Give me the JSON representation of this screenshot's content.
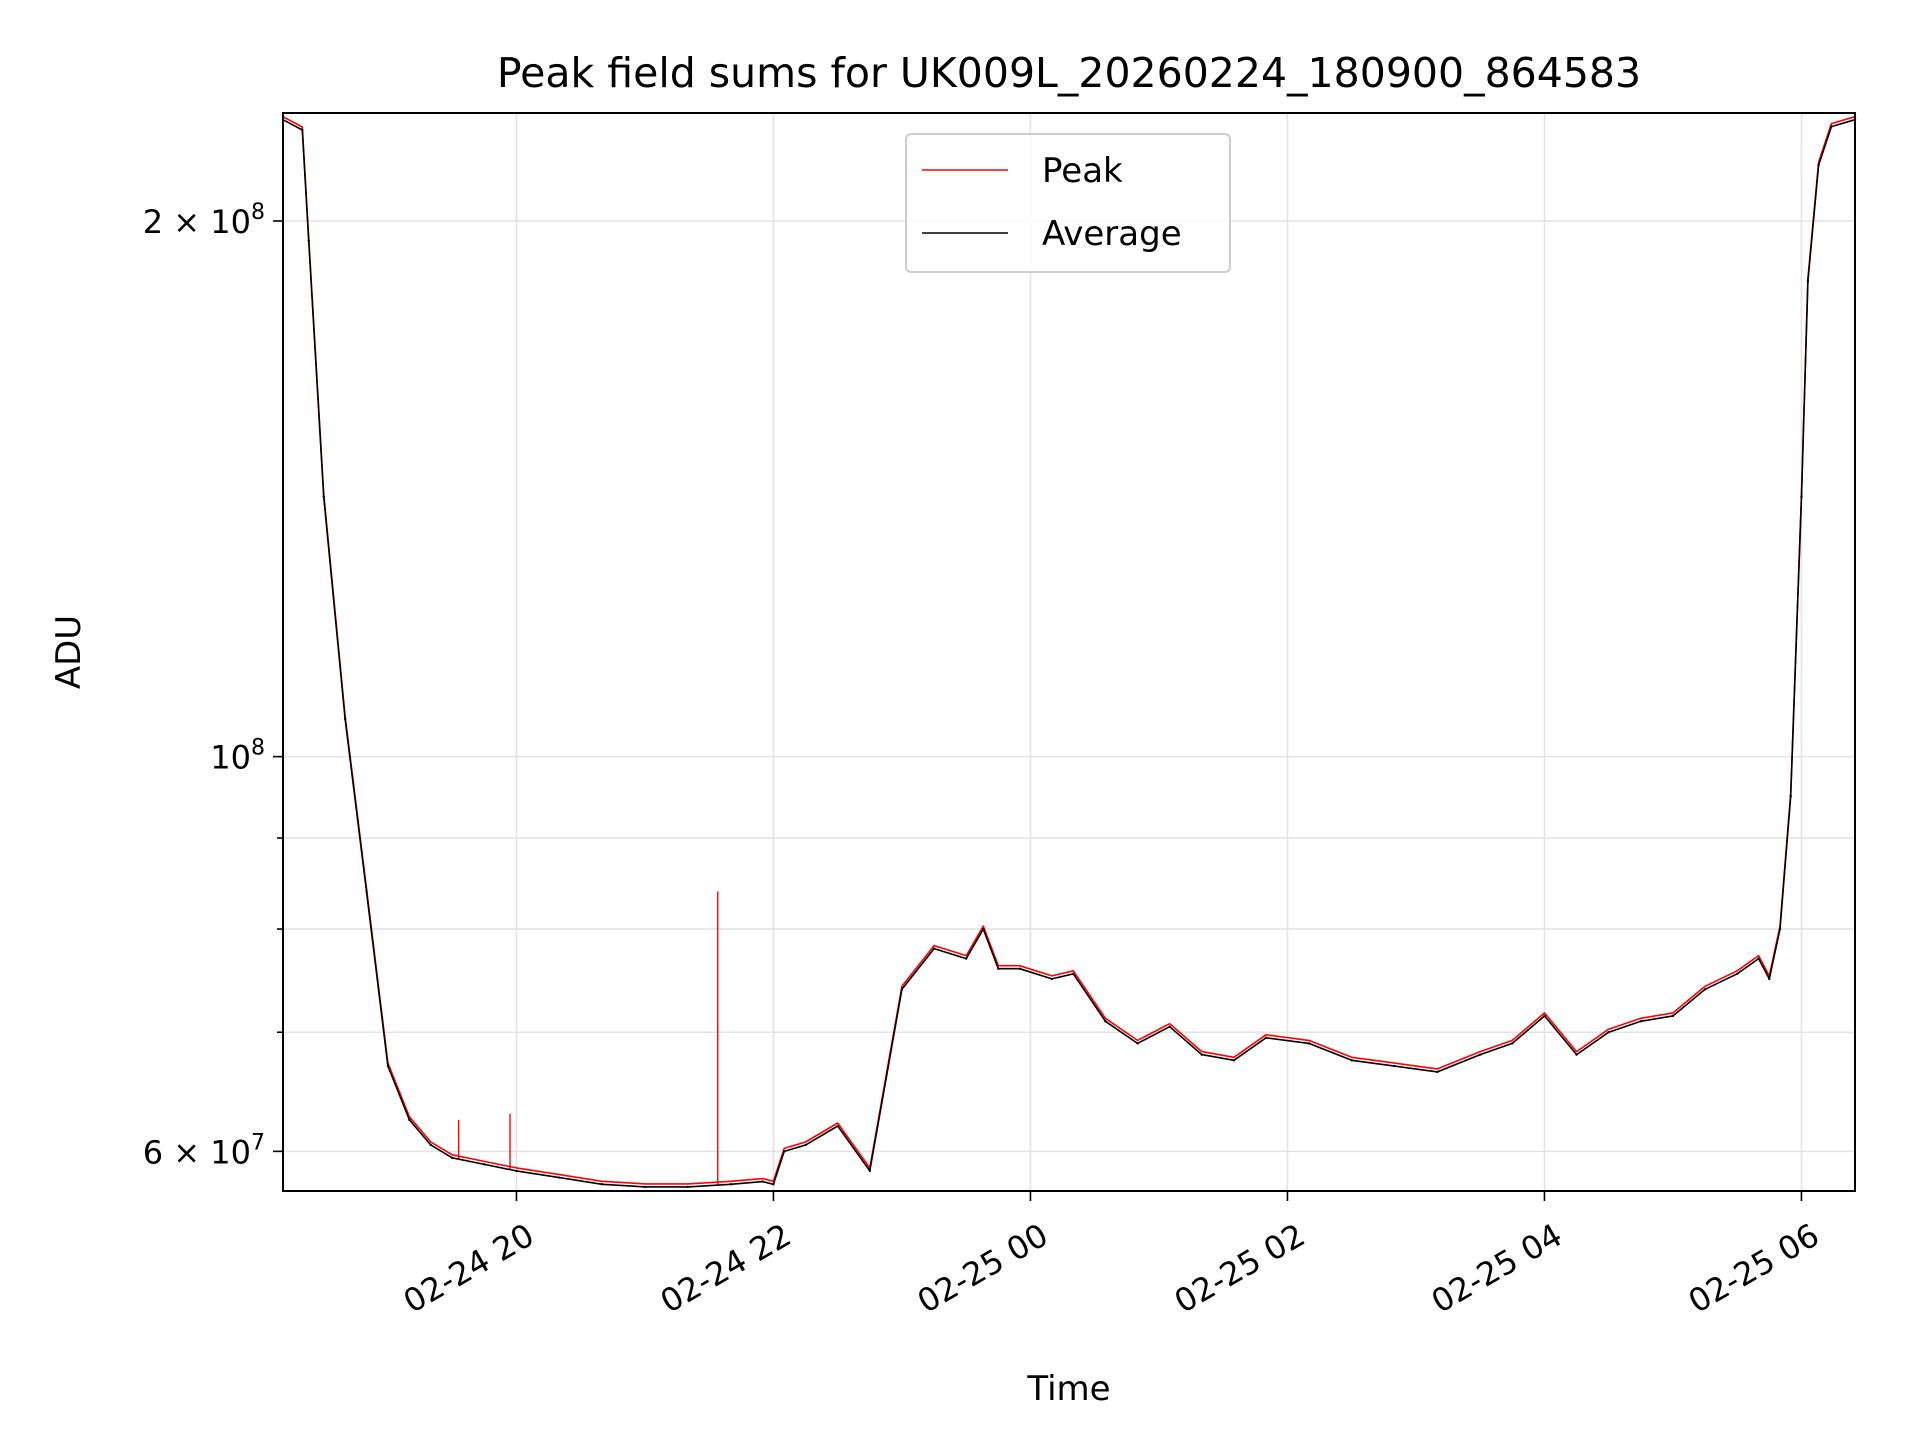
{
  "chart_data": {
    "type": "line",
    "title": "Peak field sums for UK009L_20260224_180900_864583",
    "xlabel": "Time",
    "ylabel": "ADU",
    "yscale": "log",
    "xlim": [
      "2026-02-24 18:11",
      "2026-02-25 06:25"
    ],
    "ylim": [
      57000000,
      230000000
    ],
    "grid": true,
    "legend_position": "upper center",
    "x_ticks": [
      {
        "t": "2026-02-24 20:00",
        "label": "02-24 20"
      },
      {
        "t": "2026-02-24 22:00",
        "label": "02-24 22"
      },
      {
        "t": "2026-02-25 00:00",
        "label": "02-25 00"
      },
      {
        "t": "2026-02-25 02:00",
        "label": "02-25 02"
      },
      {
        "t": "2026-02-25 04:00",
        "label": "02-25 04"
      },
      {
        "t": "2026-02-25 06:00",
        "label": "02-25 06"
      }
    ],
    "y_ticks_major": [
      {
        "v": 60000000,
        "base": "6 × 10",
        "exp": "7"
      },
      {
        "v": 100000000,
        "base": "10",
        "exp": "8"
      },
      {
        "v": 200000000,
        "base": "2 × 10",
        "exp": "8"
      }
    ],
    "y_ticks_minor": [
      70000000,
      80000000,
      90000000
    ],
    "series": [
      {
        "name": "Peak",
        "color": "#ff0000",
        "spikes": [
          {
            "t": "2026-02-24 19:33",
            "v": 62500000
          },
          {
            "t": "2026-02-24 19:57",
            "v": 63000000
          },
          {
            "t": "2026-02-24 21:34",
            "v": 84000000
          }
        ]
      },
      {
        "name": "Average",
        "color": "#000000"
      }
    ],
    "x": [
      "2026-02-24 18:11",
      "2026-02-24 18:20",
      "2026-02-24 18:23",
      "2026-02-24 18:30",
      "2026-02-24 18:40",
      "2026-02-24 18:50",
      "2026-02-24 19:00",
      "2026-02-24 19:10",
      "2026-02-24 19:20",
      "2026-02-24 19:30",
      "2026-02-24 19:45",
      "2026-02-24 20:00",
      "2026-02-24 20:20",
      "2026-02-24 20:40",
      "2026-02-24 21:00",
      "2026-02-24 21:20",
      "2026-02-24 21:40",
      "2026-02-24 21:55",
      "2026-02-24 22:00",
      "2026-02-24 22:05",
      "2026-02-24 22:15",
      "2026-02-24 22:30",
      "2026-02-24 22:45",
      "2026-02-24 23:00",
      "2026-02-24 23:15",
      "2026-02-24 23:30",
      "2026-02-24 23:38",
      "2026-02-24 23:45",
      "2026-02-24 23:55",
      "2026-02-25 00:10",
      "2026-02-25 00:20",
      "2026-02-25 00:35",
      "2026-02-25 00:50",
      "2026-02-25 01:05",
      "2026-02-25 01:20",
      "2026-02-25 01:35",
      "2026-02-25 01:50",
      "2026-02-25 02:10",
      "2026-02-25 02:30",
      "2026-02-25 02:50",
      "2026-02-25 03:10",
      "2026-02-25 03:30",
      "2026-02-25 03:45",
      "2026-02-25 04:00",
      "2026-02-25 04:15",
      "2026-02-25 04:30",
      "2026-02-25 04:45",
      "2026-02-25 05:00",
      "2026-02-25 05:15",
      "2026-02-25 05:30",
      "2026-02-25 05:40",
      "2026-02-25 05:45",
      "2026-02-25 05:50",
      "2026-02-25 05:55",
      "2026-02-25 06:00",
      "2026-02-25 06:03",
      "2026-02-25 06:08",
      "2026-02-25 06:14",
      "2026-02-25 06:25"
    ],
    "average": [
      228000000,
      225000000,
      195000000,
      140000000,
      105000000,
      84000000,
      67000000,
      62500000,
      60500000,
      59500000,
      59000000,
      58500000,
      58000000,
      57500000,
      57300000,
      57300000,
      57500000,
      57700000,
      57500000,
      60000000,
      60500000,
      62000000,
      58500000,
      74000000,
      78000000,
      77000000,
      80000000,
      76000000,
      76000000,
      75000000,
      75500000,
      71000000,
      69000000,
      70500000,
      68000000,
      67500000,
      69500000,
      69000000,
      67500000,
      67000000,
      66500000,
      68000000,
      69000000,
      71500000,
      68000000,
      70000000,
      71000000,
      71500000,
      74000000,
      75500000,
      77000000,
      75000000,
      80000000,
      95000000,
      140000000,
      185000000,
      215000000,
      226000000,
      228000000
    ]
  }
}
